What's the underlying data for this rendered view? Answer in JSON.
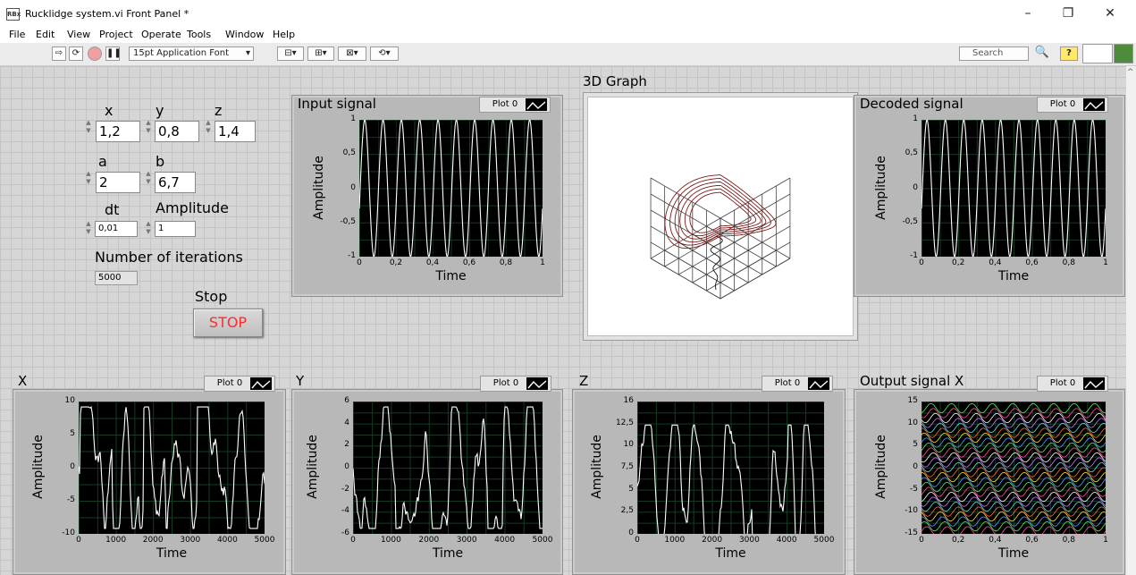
{
  "window": {
    "title": "Rucklidge system.vi Front Panel *",
    "icon_text": "RBx",
    "minimize": "–",
    "restore": "❐",
    "close": "✕"
  },
  "menu": [
    "File",
    "Edit",
    "View",
    "Project",
    "Operate",
    "Tools",
    "Window",
    "Help"
  ],
  "toolbar": {
    "font": "15pt Application Font",
    "search_placeholder": "Search"
  },
  "controls": {
    "x": {
      "label": "x",
      "value": "1,2"
    },
    "y": {
      "label": "y",
      "value": "0,8"
    },
    "z": {
      "label": "z",
      "value": "1,4"
    },
    "a": {
      "label": "a",
      "value": "2"
    },
    "b": {
      "label": "b",
      "value": "6,7"
    },
    "dt": {
      "label": "dt",
      "value": "0,01"
    },
    "amplitude": {
      "label": "Amplitude",
      "value": "1"
    },
    "iterations": {
      "label": "Number of iterations",
      "value": "5000"
    },
    "stop": {
      "label": "Stop",
      "button": "STOP"
    }
  },
  "graph3d": {
    "title": "3D Graph"
  },
  "graphs": [
    {
      "id": "input",
      "title": "Input signal",
      "legend": "Plot 0",
      "xlabel": "Time",
      "ylabel": "Amplitude",
      "xticks": [
        "0",
        "0,2",
        "0,4",
        "0,6",
        "0,8",
        "1"
      ],
      "yticks": [
        "1",
        "0,5",
        "0",
        "-0,5",
        "-1"
      ],
      "kind": "sine"
    },
    {
      "id": "decoded",
      "title": "Decoded signal",
      "legend": "Plot 0",
      "xlabel": "Time",
      "ylabel": "Amplitude",
      "xticks": [
        "0",
        "0,2",
        "0,4",
        "0,6",
        "0,8",
        "1"
      ],
      "yticks": [
        "1",
        "0,5",
        "0",
        "-0,5",
        "-1"
      ],
      "kind": "sine"
    },
    {
      "id": "x",
      "title": "X",
      "legend": "Plot 0",
      "xlabel": "Time",
      "ylabel": "Amplitude",
      "xticks": [
        "0",
        "1000",
        "2000",
        "3000",
        "4000",
        "5000"
      ],
      "yticks": [
        "10",
        "5",
        "0",
        "-5",
        "-10"
      ],
      "kind": "chaos"
    },
    {
      "id": "y",
      "title": "Y",
      "legend": "Plot 0",
      "xlabel": "Time",
      "ylabel": "Amplitude",
      "xticks": [
        "0",
        "1000",
        "2000",
        "3000",
        "4000",
        "5000"
      ],
      "yticks": [
        "6",
        "4",
        "2",
        "0",
        "-2",
        "-4",
        "-6"
      ],
      "kind": "chaos"
    },
    {
      "id": "z",
      "title": "Z",
      "legend": "Plot 0",
      "xlabel": "Time",
      "ylabel": "Amplitude",
      "xticks": [
        "0",
        "1000",
        "2000",
        "3000",
        "4000",
        "5000"
      ],
      "yticks": [
        "16",
        "12,5",
        "10",
        "7,5",
        "5",
        "2,5",
        "0"
      ],
      "kind": "chaosz"
    },
    {
      "id": "outx",
      "title": "Output signal X",
      "legend": "Plot 0",
      "xlabel": "Time",
      "ylabel": "Amplitude",
      "xticks": [
        "0",
        "0,2",
        "0,4",
        "0,6",
        "0,8",
        "1"
      ],
      "yticks": [
        "15",
        "10",
        "5",
        "0",
        "-5",
        "-10",
        "-15"
      ],
      "kind": "band"
    }
  ],
  "colors": {
    "panel": "#d6d6d6",
    "plot_bg": "#000000",
    "grid": "#153b22",
    "trace": "#ffffff",
    "stop_text": "#ff2a2a",
    "traj": "#7a1a1a"
  }
}
